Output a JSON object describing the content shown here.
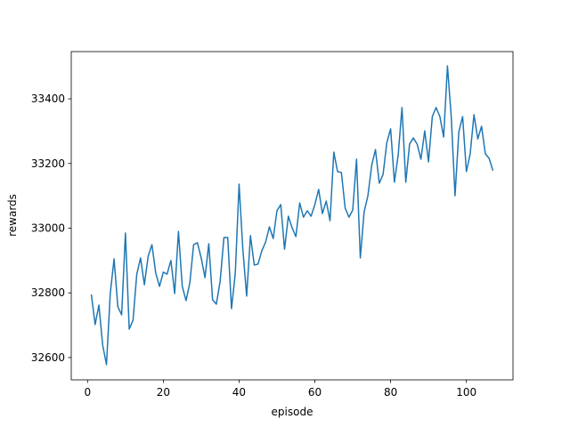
{
  "chart_data": {
    "type": "line",
    "x_label": "episode",
    "y_label": "rewards",
    "x": [
      1,
      2,
      3,
      4,
      5,
      6,
      7,
      8,
      9,
      10,
      11,
      12,
      13,
      14,
      15,
      16,
      17,
      18,
      19,
      20,
      21,
      22,
      23,
      24,
      25,
      26,
      27,
      28,
      29,
      30,
      31,
      32,
      33,
      34,
      35,
      36,
      37,
      38,
      39,
      40,
      41,
      42,
      43,
      44,
      45,
      46,
      47,
      48,
      49,
      50,
      51,
      52,
      53,
      54,
      55,
      56,
      57,
      58,
      59,
      60,
      61,
      62,
      63,
      64,
      65,
      66,
      67,
      68,
      69,
      70,
      71,
      72,
      73,
      74,
      75,
      76,
      77,
      78,
      79,
      80,
      81,
      82,
      83,
      84,
      85,
      86,
      87,
      88,
      89,
      90,
      91,
      92,
      93,
      94,
      95,
      96,
      97,
      98,
      99,
      100,
      101,
      102,
      103,
      104,
      105,
      106,
      107
    ],
    "series": [
      {
        "color": "#1f77b4",
        "values": [
          32795,
          32702,
          32762,
          32638,
          32578,
          32798,
          32905,
          32757,
          32732,
          32985,
          32688,
          32715,
          32858,
          32908,
          32825,
          32913,
          32949,
          32861,
          32820,
          32864,
          32858,
          32900,
          32798,
          32990,
          32820,
          32776,
          32831,
          32949,
          32955,
          32908,
          32847,
          32952,
          32779,
          32765,
          32836,
          32971,
          32971,
          32751,
          32861,
          33136,
          32933,
          32790,
          32977,
          32886,
          32889,
          32930,
          32957,
          33004,
          32968,
          33054,
          33073,
          32935,
          33037,
          33001,
          32974,
          33078,
          33034,
          33054,
          33037,
          33073,
          33120,
          33045,
          33084,
          33023,
          33235,
          33175,
          33172,
          33062,
          33034,
          33056,
          33213,
          32908,
          33050,
          33100,
          33194,
          33243,
          33139,
          33166,
          33265,
          33307,
          33142,
          33227,
          33373,
          33142,
          33260,
          33279,
          33260,
          33213,
          33301,
          33205,
          33345,
          33373,
          33345,
          33282,
          33502,
          33345,
          33100,
          33298,
          33345,
          33175,
          33230,
          33351,
          33276,
          33315,
          33230,
          33216,
          33178
        ]
      }
    ],
    "xlim": [
      -4.3,
      112.3
    ],
    "ylim": [
      32531,
      33546
    ],
    "xticks": [
      0,
      20,
      40,
      60,
      80,
      100
    ],
    "yticks": [
      32600,
      32800,
      33000,
      33200,
      33400
    ]
  }
}
